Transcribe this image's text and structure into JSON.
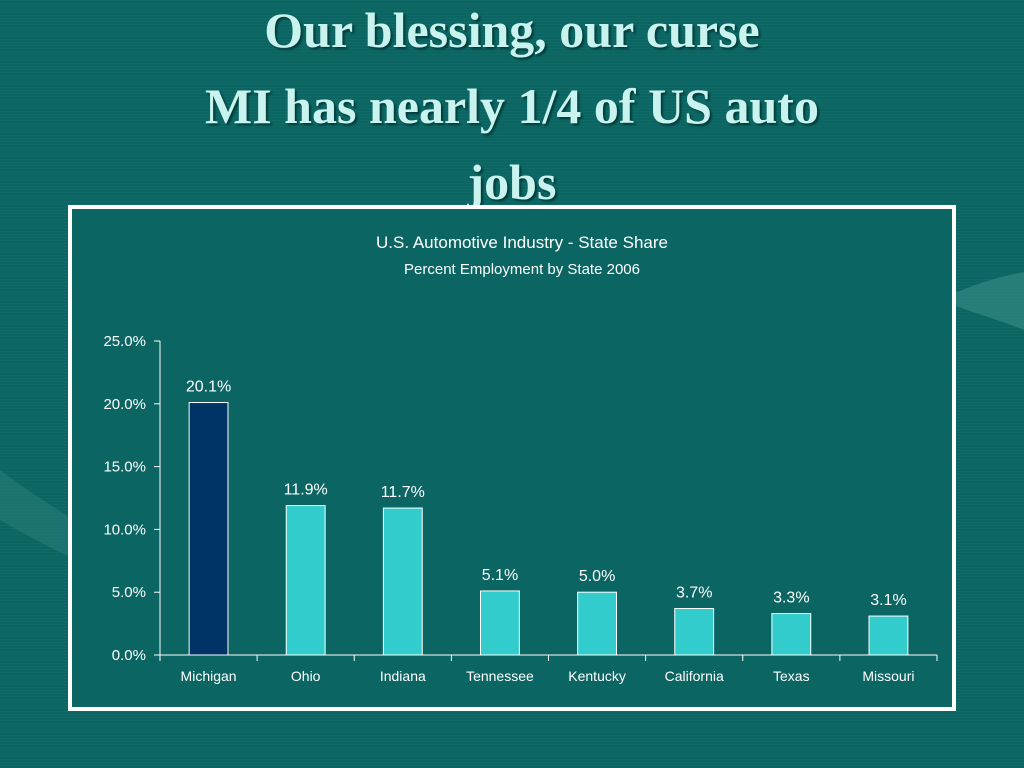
{
  "slide": {
    "title_line1": "Our blessing, our curse",
    "title_line2": "MI has nearly 1/4 of US auto",
    "title_line3": "jobs"
  },
  "colors": {
    "background": "#0b6663",
    "title_text": "#c9f3ef",
    "highlight_bar": "#003366",
    "bar": "#33cccc",
    "chart_border": "#ffffff"
  },
  "chart_data": {
    "type": "bar",
    "title": "U.S. Automotive Industry - State Share",
    "subtitle": "Percent Employment by State 2006",
    "xlabel": "",
    "ylabel": "",
    "categories": [
      "Michigan",
      "Ohio",
      "Indiana",
      "Tennessee",
      "Kentucky",
      "California",
      "Texas",
      "Missouri"
    ],
    "values": [
      20.1,
      11.9,
      11.7,
      5.1,
      5.0,
      3.7,
      3.3,
      3.1
    ],
    "data_labels": [
      "20.1%",
      "11.9%",
      "11.7%",
      "5.1%",
      "5.0%",
      "3.7%",
      "3.3%",
      "3.1%"
    ],
    "yticks": [
      0,
      5,
      10,
      15,
      20,
      25
    ],
    "ytick_labels": [
      "0.0%",
      "5.0%",
      "10.0%",
      "15.0%",
      "20.0%",
      "25.0%"
    ],
    "ylim": [
      0,
      25
    ],
    "grid": false,
    "legend": "none",
    "highlight_category": "Michigan"
  }
}
